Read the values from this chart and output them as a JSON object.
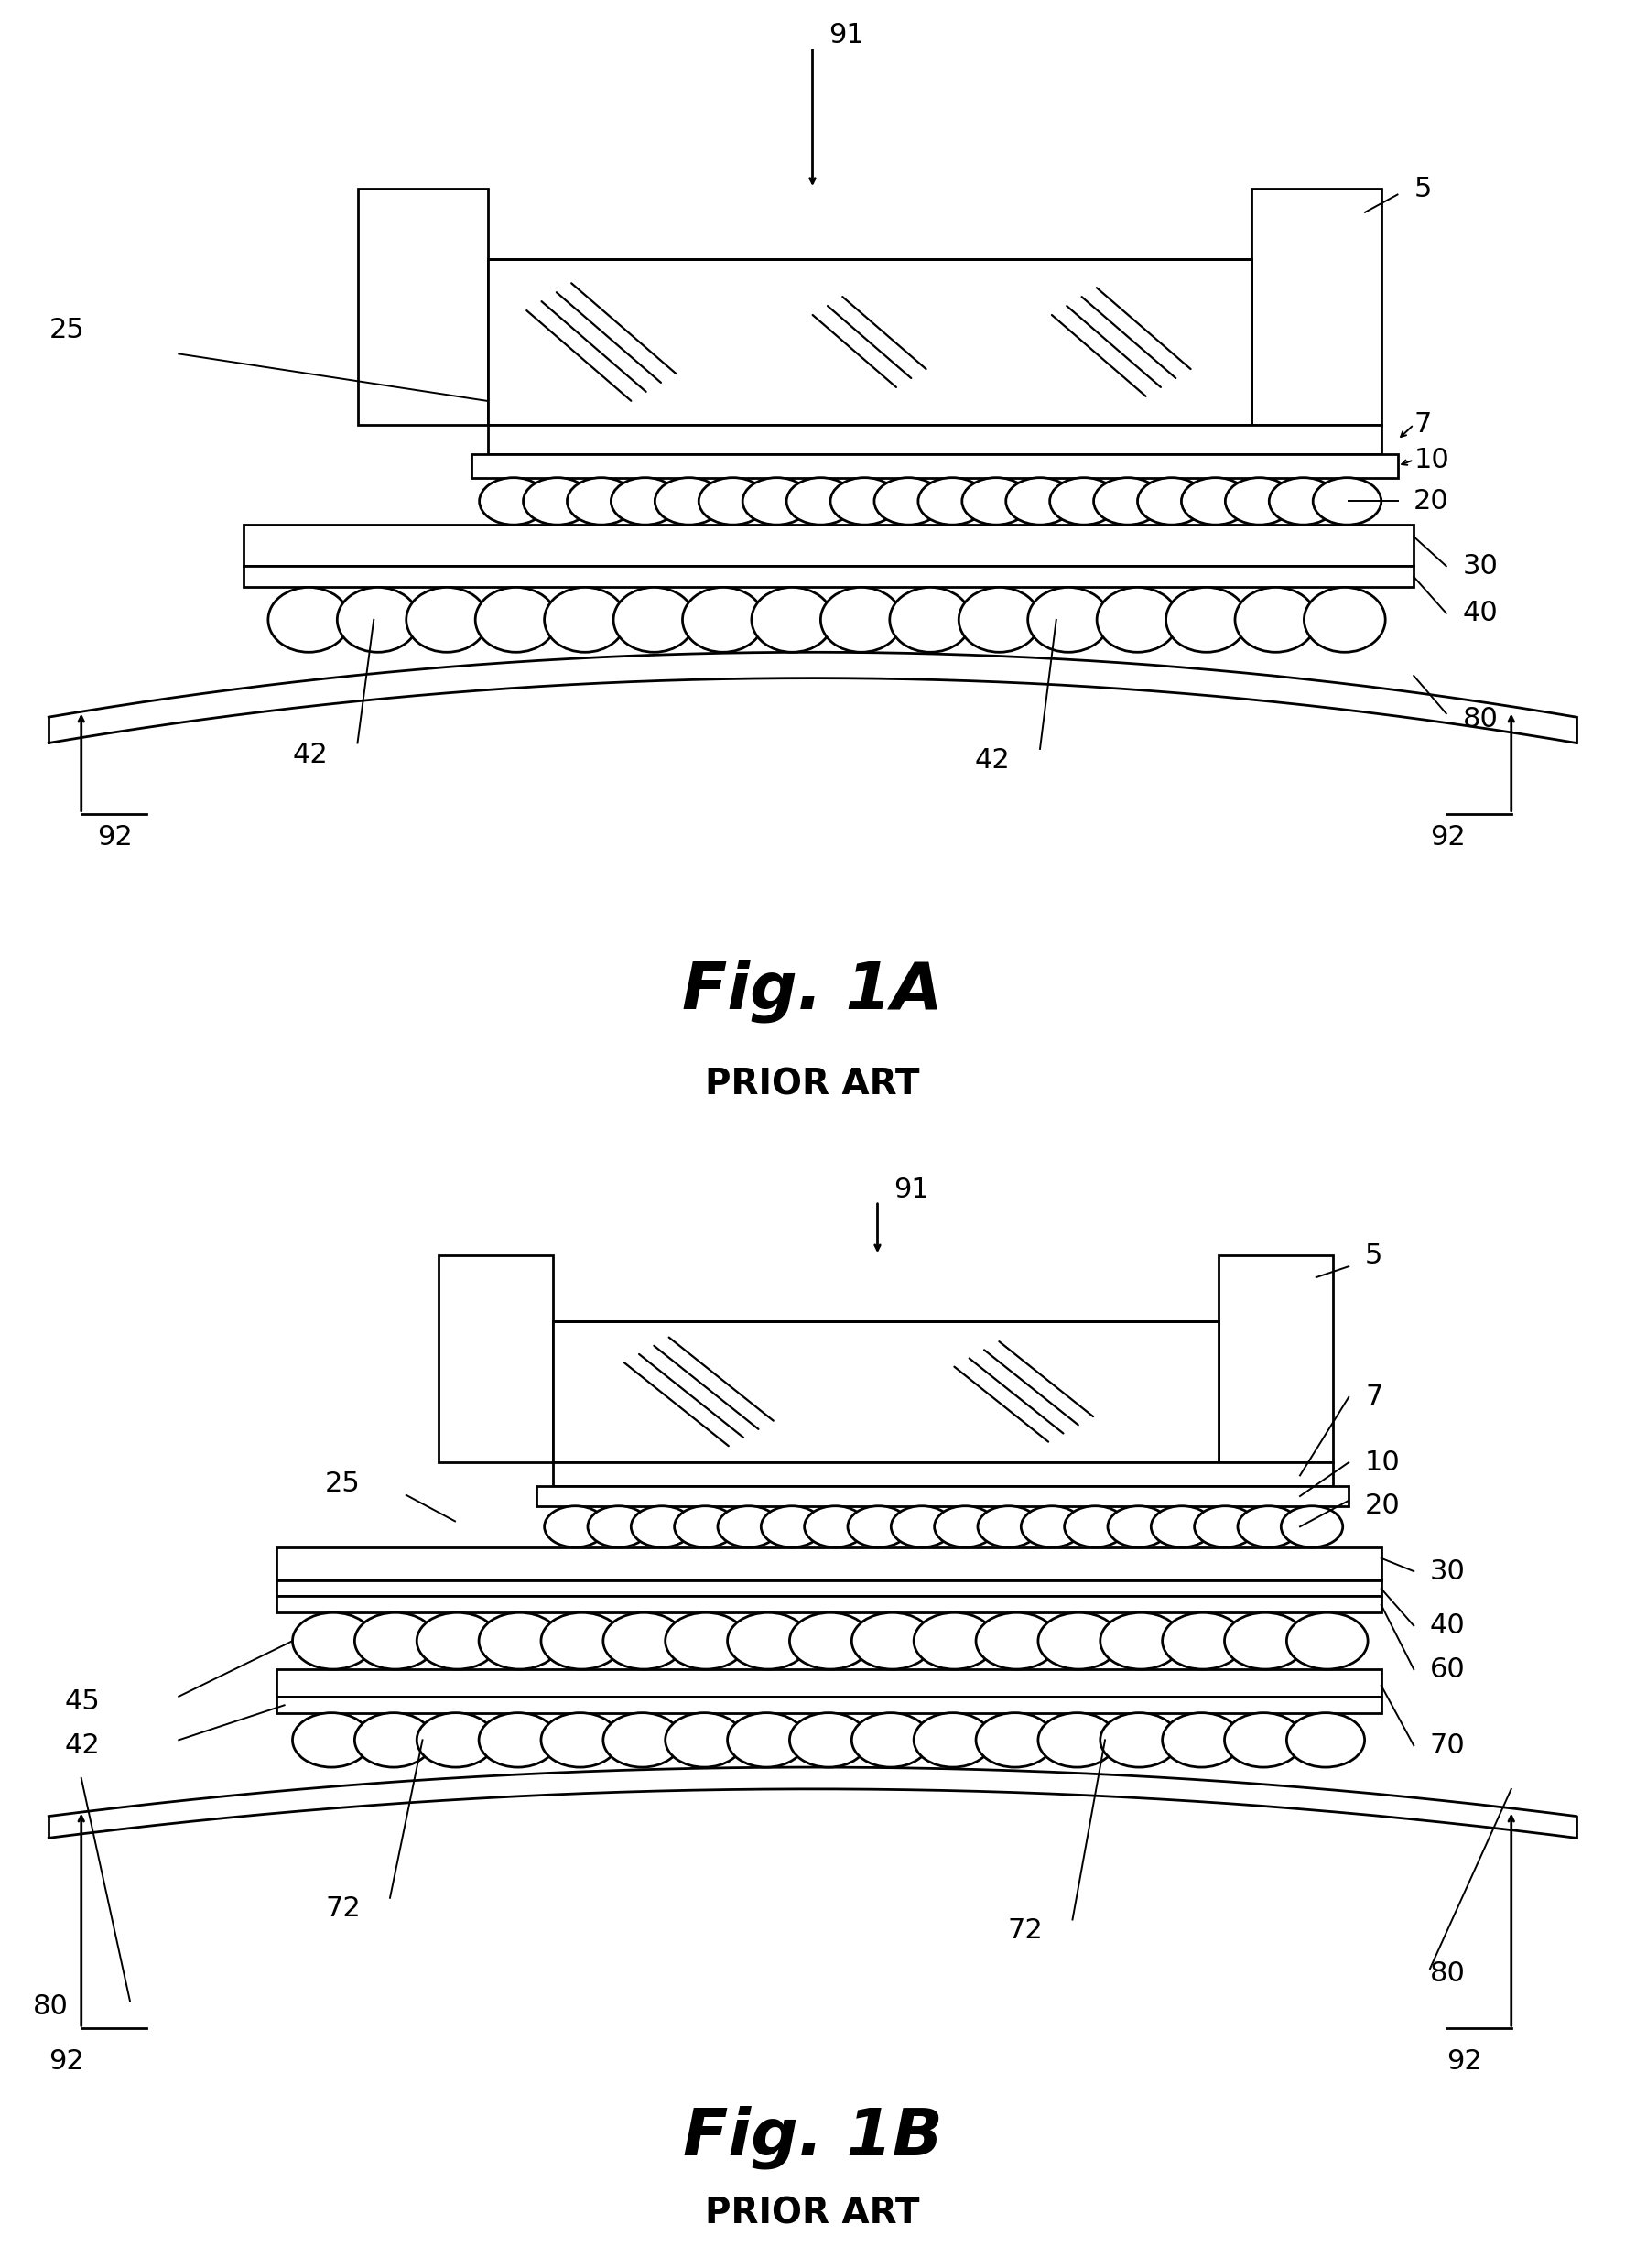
{
  "fig_width": 17.75,
  "fig_height": 24.77,
  "bg_color": "#ffffff",
  "line_color": "#000000",
  "line_width": 2.0,
  "fig1A": {
    "title": "Fig. 1A",
    "subtitle": "PRIOR ART",
    "title_fontsize": 52,
    "subtitle_fontsize": 28,
    "label_fontsize": 22
  },
  "fig1B": {
    "title": "Fig. 1B",
    "subtitle": "PRIOR ART",
    "title_fontsize": 52,
    "subtitle_fontsize": 28,
    "label_fontsize": 22
  }
}
